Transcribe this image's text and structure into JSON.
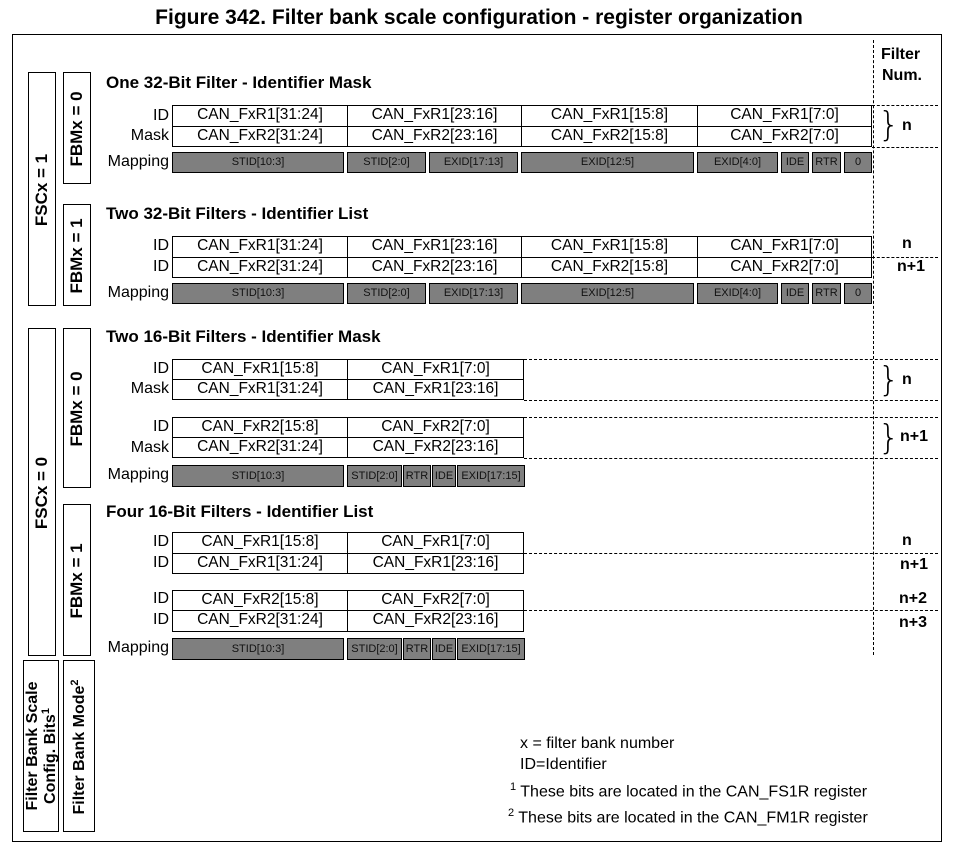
{
  "title": "Figure 342. Filter bank scale configuration - register organization",
  "filter_num_header": [
    "Filter",
    "Num."
  ],
  "left_labels": {
    "fscx1": "FSCx = 1",
    "fscx0": "FSCx = 0",
    "fbm0_a": "FBMx = 0",
    "fbm1_a": "FBMx = 1",
    "fbm0_b": "FBMx = 0",
    "fbm1_b": "FBMx = 1",
    "scale_bits_line1": "Filter Bank Scale",
    "scale_bits_line2": "Config. Bits",
    "scale_bits_sup": "1",
    "mode_line": "Filter Bank Mode",
    "mode_sup": "2"
  },
  "sections": [
    {
      "title": "One 32-Bit Filter - Identifier Mask",
      "rows": [
        {
          "label": "ID",
          "cells": [
            "CAN_FxR1[31:24]",
            "CAN_FxR1[23:16]",
            "CAN_FxR1[15:8]",
            "CAN_FxR1[7:0]"
          ]
        },
        {
          "label": "Mask",
          "cells": [
            "CAN_FxR2[31:24]",
            "CAN_FxR2[23:16]",
            "CAN_FxR2[15:8]",
            "CAN_FxR2[7:0]"
          ]
        }
      ],
      "mapping_label": "Mapping",
      "mapping": [
        "STID[10:3]",
        "STID[2:0]",
        "EXID[17:13]",
        "EXID[12:5]",
        "EXID[4:0]",
        "IDE",
        "RTR",
        "0"
      ],
      "filter_nums": [
        "n"
      ]
    },
    {
      "title": "Two 32-Bit Filters - Identifier List",
      "rows": [
        {
          "label": "ID",
          "cells": [
            "CAN_FxR1[31:24]",
            "CAN_FxR1[23:16]",
            "CAN_FxR1[15:8]",
            "CAN_FxR1[7:0]"
          ]
        },
        {
          "label": "ID",
          "cells": [
            "CAN_FxR2[31:24]",
            "CAN_FxR2[23:16]",
            "CAN_FxR2[15:8]",
            "CAN_FxR2[7:0]"
          ]
        }
      ],
      "mapping_label": "Mapping",
      "mapping": [
        "STID[10:3]",
        "STID[2:0]",
        "EXID[17:13]",
        "EXID[12:5]",
        "EXID[4:0]",
        "IDE",
        "RTR",
        "0"
      ],
      "filter_nums": [
        "n",
        "n+1"
      ]
    },
    {
      "title": "Two 16-Bit Filters - Identifier Mask",
      "groups": [
        {
          "rows": [
            {
              "label": "ID",
              "cells": [
                "CAN_FxR1[15:8]",
                "CAN_FxR1[7:0]"
              ]
            },
            {
              "label": "Mask",
              "cells": [
                "CAN_FxR1[31:24]",
                "CAN_FxR1[23:16]"
              ]
            }
          ],
          "filter_num": "n"
        },
        {
          "rows": [
            {
              "label": "ID",
              "cells": [
                "CAN_FxR2[15:8]",
                "CAN_FxR2[7:0]"
              ]
            },
            {
              "label": "Mask",
              "cells": [
                "CAN_FxR2[31:24]",
                "CAN_FxR2[23:16]"
              ]
            }
          ],
          "filter_num": "n+1"
        }
      ],
      "mapping_label": "Mapping",
      "mapping": [
        "STID[10:3]",
        "STID[2:0]",
        "RTR",
        "IDE",
        "EXID[17:15]"
      ]
    },
    {
      "title": "Four 16-Bit Filters - Identifier List",
      "groups": [
        {
          "rows": [
            {
              "label": "ID",
              "cells": [
                "CAN_FxR1[15:8]",
                "CAN_FxR1[7:0]"
              ],
              "filter_num": "n"
            },
            {
              "label": "ID",
              "cells": [
                "CAN_FxR1[31:24]",
                "CAN_FxR1[23:16]"
              ],
              "filter_num": "n+1"
            }
          ]
        },
        {
          "rows": [
            {
              "label": "ID",
              "cells": [
                "CAN_FxR2[15:8]",
                "CAN_FxR2[7:0]"
              ],
              "filter_num": "n+2"
            },
            {
              "label": "ID",
              "cells": [
                "CAN_FxR2[31:24]",
                "CAN_FxR2[23:16]"
              ],
              "filter_num": "n+3"
            }
          ]
        }
      ],
      "mapping_label": "Mapping",
      "mapping": [
        "STID[10:3]",
        "STID[2:0]",
        "RTR",
        "IDE",
        "EXID[17:15]"
      ]
    }
  ],
  "legend": {
    "line1": "x = filter bank number",
    "line2": "ID=Identifier",
    "note1_sup": "1",
    "note1": "These bits are located in the CAN_FS1R register",
    "note2_sup": "2",
    "note2": "These bits are located in the CAN_FM1R register"
  }
}
